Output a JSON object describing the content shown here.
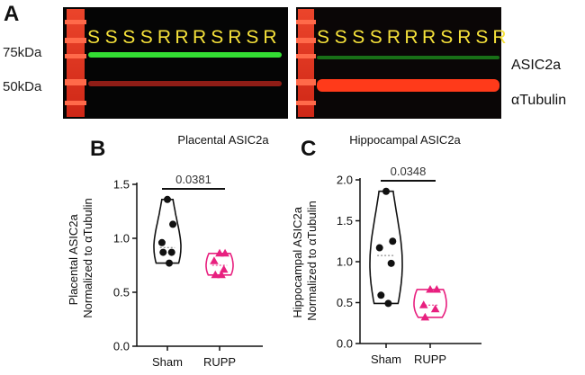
{
  "panels": {
    "a": "A",
    "b": "B",
    "c": "C"
  },
  "blot": {
    "mw_markers": [
      "75kDa",
      "50kDa"
    ],
    "band_labels": [
      "ASIC2a",
      "αTubulin"
    ],
    "lanes_left": [
      "S",
      "S",
      "S",
      "S",
      "R",
      "R",
      "R",
      "S",
      "R",
      "S",
      "R"
    ],
    "lanes_right": [
      "S",
      "S",
      "S",
      "S",
      "R",
      "R",
      "R",
      "S",
      "R",
      "S",
      "R"
    ],
    "lane_label_color": "#f5e13a",
    "asic_band_color": "#33dd33",
    "tubulin_band_color": "#ff3a1a",
    "ladder_color": "#ff3322"
  },
  "chart_data": [
    {
      "type": "violin",
      "title": "Placental ASIC2a",
      "ylabel": "Placental ASIC2a Normalized to αTubulin",
      "ylabel_lines": [
        "Placental ASIC2a",
        "Normalized to αTubulin"
      ],
      "categories": [
        "Sham",
        "RUPP"
      ],
      "ylim": [
        0.0,
        1.5
      ],
      "yticks": [
        "0.0",
        "0.5",
        "1.0",
        "1.5"
      ],
      "p_value": "0.0381",
      "series": [
        {
          "values": [
            1.36,
            1.13,
            0.96,
            0.87,
            0.87,
            0.77
          ],
          "color": "#111111",
          "marker": "circle"
        },
        {
          "values": [
            0.86,
            0.86,
            0.79,
            0.71,
            0.66,
            0.66
          ],
          "color": "#e8207f",
          "marker": "triangle"
        }
      ]
    },
    {
      "type": "violin",
      "title": "Hippocampal ASIC2a",
      "ylabel": "Hippocampal ASIC2a Normalized to αTubulin",
      "ylabel_lines": [
        "Hippocampal ASIC2a",
        "Normalized to αTubulin"
      ],
      "categories": [
        "Sham",
        "RUPP"
      ],
      "ylim": [
        0.0,
        2.0
      ],
      "yticks": [
        "0.0",
        "0.5",
        "1.0",
        "1.5",
        "2.0"
      ],
      "p_value": "0.0348",
      "series": [
        {
          "values": [
            1.86,
            1.25,
            1.17,
            0.98,
            0.59,
            0.49
          ],
          "color": "#111111",
          "marker": "circle"
        },
        {
          "values": [
            0.66,
            0.66,
            0.47,
            0.42,
            0.32
          ],
          "color": "#e8207f",
          "marker": "triangle"
        }
      ]
    }
  ]
}
